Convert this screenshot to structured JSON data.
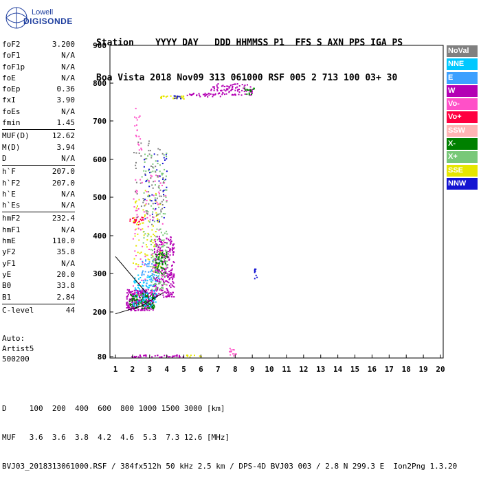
{
  "logo": {
    "line1": "Lowell",
    "line2": "DIGISONDE"
  },
  "header": {
    "line1": "Station    YYYY DAY   DDD HHMMSS P1  FFS S AXN PPS IGA PS",
    "line2": "Boa Vista 2018 Nov09 313 061000 RSF 005 2 713 100 03+ 30"
  },
  "params": [
    {
      "k": "foF2",
      "v": "3.200"
    },
    {
      "k": "foF1",
      "v": "N/A"
    },
    {
      "k": "foF1p",
      "v": "N/A"
    },
    {
      "k": "foE",
      "v": "N/A"
    },
    {
      "k": "foEp",
      "v": "0.36"
    },
    {
      "k": "fxI",
      "v": "3.90"
    },
    {
      "k": "foEs",
      "v": "N/A"
    },
    {
      "k": "fmin",
      "v": "1.45"
    },
    {
      "sep": true
    },
    {
      "k": "MUF(D)",
      "v": "12.62"
    },
    {
      "k": "M(D)",
      "v": "3.94"
    },
    {
      "k": "D",
      "v": "N/A"
    },
    {
      "sep": true
    },
    {
      "k": "h`F",
      "v": "207.0"
    },
    {
      "k": "h`F2",
      "v": "207.0"
    },
    {
      "k": "h`E",
      "v": "N/A"
    },
    {
      "k": "h`Es",
      "v": "N/A"
    },
    {
      "sep": true
    },
    {
      "k": "hmF2",
      "v": "232.4"
    },
    {
      "k": "hmF1",
      "v": "N/A"
    },
    {
      "k": "hmE",
      "v": "110.0"
    },
    {
      "k": "yF2",
      "v": "35.8"
    },
    {
      "k": "yF1",
      "v": "N/A"
    },
    {
      "k": "yE",
      "v": "20.0"
    },
    {
      "k": "B0",
      "v": "33.8"
    },
    {
      "k": "B1",
      "v": "2.84"
    },
    {
      "sep": true
    },
    {
      "k": "C-level",
      "v": "44"
    }
  ],
  "auto": {
    "line1": "Auto:",
    "line2": "Artist5",
    "line3": "500200"
  },
  "legend": [
    {
      "label": "NoVal",
      "color": "#808080"
    },
    {
      "label": "NNE",
      "color": "#00c8ff"
    },
    {
      "label": "E",
      "color": "#3ca0ff"
    },
    {
      "label": "W",
      "color": "#b400b4"
    },
    {
      "label": "Vo-",
      "color": "#ff50c8"
    },
    {
      "label": "Vo+",
      "color": "#ff0040"
    },
    {
      "label": "SSW",
      "color": "#ffb4b4"
    },
    {
      "label": "X-",
      "color": "#008000"
    },
    {
      "label": "X+",
      "color": "#78c878"
    },
    {
      "label": "SSE",
      "color": "#e6e600"
    },
    {
      "label": "NNW",
      "color": "#1414d2"
    }
  ],
  "footer": {
    "line1": "D     100  200  400  600  800 1000 1500 3000 [km]",
    "line2": "MUF   3.6  3.6  3.8  4.2  4.6  5.3  7.3 12.6 [MHz]",
    "line3": "BVJ03_2018313061000.RSF / 384fx512h 50 kHz 2.5 km / DPS-4D BVJ03 003 / 2.8 N 299.3 E  Ion2Png 1.3.20"
  },
  "chart_data": {
    "type": "scatter",
    "xlim": [
      1,
      20
    ],
    "ylim": [
      80,
      900
    ],
    "xticks": [
      1,
      2,
      3,
      4,
      5,
      6,
      7,
      8,
      9,
      10,
      11,
      12,
      13,
      14,
      15,
      16,
      17,
      18,
      19,
      20
    ],
    "yticks": [
      80,
      200,
      300,
      400,
      500,
      600,
      700,
      800,
      900
    ],
    "grid": false,
    "legend_position": "right",
    "clusters": [
      {
        "mode": "W",
        "x": [
          1.6,
          3.2
        ],
        "y": [
          205,
          260
        ],
        "n": 260
      },
      {
        "mode": "X-",
        "x": [
          1.8,
          3.3
        ],
        "y": [
          210,
          250
        ],
        "n": 120
      },
      {
        "mode": "NNE",
        "x": [
          2.0,
          3.4
        ],
        "y": [
          215,
          300
        ],
        "n": 90
      },
      {
        "mode": "E",
        "x": [
          2.5,
          3.6
        ],
        "y": [
          250,
          340
        ],
        "n": 70
      },
      {
        "mode": "W",
        "x": [
          3.2,
          4.4
        ],
        "y": [
          240,
          400
        ],
        "n": 260
      },
      {
        "mode": "X+",
        "x": [
          3.0,
          4.0
        ],
        "y": [
          260,
          380
        ],
        "n": 80
      },
      {
        "mode": "X-",
        "x": [
          3.3,
          4.0
        ],
        "y": [
          300,
          360
        ],
        "n": 60
      },
      {
        "mode": "SSE",
        "x": [
          2.0,
          3.6
        ],
        "y": [
          300,
          520
        ],
        "n": 80
      },
      {
        "mode": "Vo-",
        "x": [
          2.0,
          4.0
        ],
        "y": [
          250,
          560
        ],
        "n": 90
      },
      {
        "mode": "X+",
        "x": [
          2.5,
          4.0
        ],
        "y": [
          380,
          620
        ],
        "n": 80
      },
      {
        "mode": "NoVal",
        "x": [
          2.0,
          3.8
        ],
        "y": [
          430,
          650
        ],
        "n": 70
      },
      {
        "mode": "NNW",
        "x": [
          2.6,
          4.0
        ],
        "y": [
          420,
          620
        ],
        "n": 40
      },
      {
        "mode": "Vo+",
        "x": [
          1.8,
          2.6
        ],
        "y": [
          430,
          450
        ],
        "n": 20
      },
      {
        "mode": "Vo-",
        "x": [
          2.0,
          2.5
        ],
        "y": [
          620,
          740
        ],
        "n": 20
      },
      {
        "mode": "SSE",
        "x": [
          3.6,
          5.0
        ],
        "y": [
          760,
          768
        ],
        "n": 30
      },
      {
        "mode": "NNW",
        "x": [
          4.3,
          4.8
        ],
        "y": [
          760,
          768
        ],
        "n": 10
      },
      {
        "mode": "W",
        "x": [
          5.0,
          7.1
        ],
        "y": [
          765,
          775
        ],
        "n": 30
      },
      {
        "mode": "W",
        "x": [
          6.5,
          9.0
        ],
        "y": [
          770,
          800
        ],
        "n": 90
      },
      {
        "mode": "X-",
        "x": [
          8.5,
          9.1
        ],
        "y": [
          770,
          790
        ],
        "n": 15
      },
      {
        "mode": "NNW",
        "x": [
          9.1,
          9.25
        ],
        "y": [
          285,
          315
        ],
        "n": 10
      },
      {
        "mode": "W",
        "x": [
          1.8,
          5.0
        ],
        "y": [
          80,
          86
        ],
        "n": 40
      },
      {
        "mode": "SSE",
        "x": [
          5.0,
          6.0
        ],
        "y": [
          80,
          86
        ],
        "n": 10
      },
      {
        "mode": "Vo-",
        "x": [
          7.6,
          8.1
        ],
        "y": [
          80,
          105
        ],
        "n": 12
      }
    ],
    "trace_lines": [
      {
        "points": [
          [
            1,
            345
          ],
          [
            2.8,
            250
          ]
        ]
      },
      {
        "points": [
          [
            1,
            195
          ],
          [
            2.5,
            215
          ],
          [
            3.8,
            250
          ]
        ]
      }
    ]
  }
}
